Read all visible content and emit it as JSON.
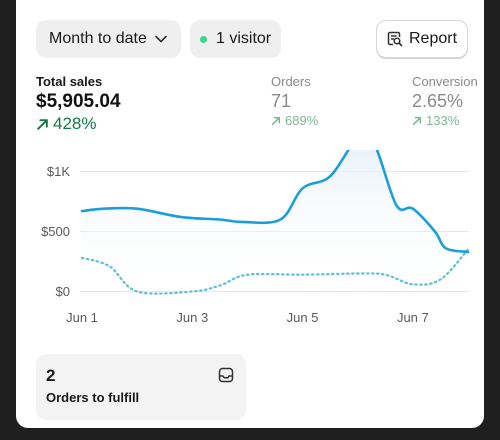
{
  "toolbar": {
    "date_range": "Month to date",
    "visitors": "1 visitor",
    "visitor_dot_color": "#3dd68c",
    "report_label": "Report",
    "icons": [
      "chevron-down-icon",
      "report-search-icon"
    ]
  },
  "metrics": {
    "total_sales": {
      "label": "Total sales",
      "value": "$5,905.04",
      "change": "428%"
    },
    "orders": {
      "label": "Orders",
      "value": "71",
      "change": "689%"
    },
    "conversion": {
      "label": "Conversion",
      "value": "2.65%",
      "change": "133%"
    }
  },
  "chart_data": {
    "type": "line",
    "x_labels": [
      "Jun 1",
      "Jun 3",
      "Jun 5",
      "Jun 7"
    ],
    "y_ticks": [
      "$1K",
      "$500",
      "$0"
    ],
    "ylim": [
      0,
      1000
    ],
    "grid": true,
    "colors": {
      "current": "#1a9fd8",
      "comparison": "#5fbfd6"
    },
    "series": [
      {
        "style": "solid",
        "x": [
          1,
          1.4,
          2,
          2.8,
          3.5,
          3.9,
          4.6,
          5,
          5.5,
          6,
          6.3,
          6.7,
          7,
          7.4,
          7.6,
          8
        ],
        "values": [
          670,
          690,
          690,
          620,
          600,
          580,
          600,
          860,
          960,
          1280,
          1230,
          720,
          690,
          500,
          360,
          330
        ]
      },
      {
        "style": "dotted",
        "x": [
          1,
          1.5,
          2,
          3,
          3.5,
          4,
          5,
          6,
          6.5,
          7,
          7.5,
          8
        ],
        "values": [
          280,
          210,
          0,
          0,
          50,
          140,
          140,
          150,
          140,
          60,
          100,
          350
        ]
      }
    ]
  },
  "fulfill_card": {
    "count": "2",
    "label": "Orders to fulfill",
    "icon": "inbox-icon"
  }
}
